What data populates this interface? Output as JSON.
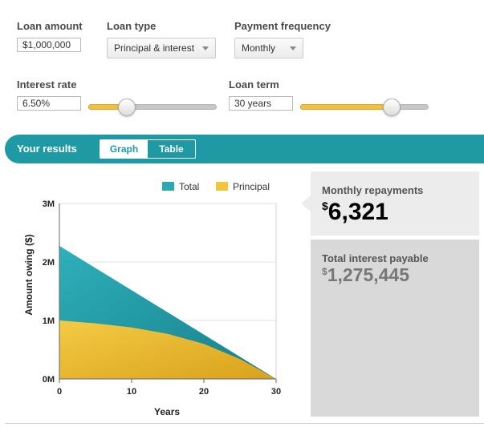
{
  "form": {
    "loan_amount_label": "Loan amount",
    "loan_amount_value": "$1,000,000",
    "loan_type_label": "Loan type",
    "loan_type_value": "Principal & interest",
    "frequency_label": "Payment frequency",
    "frequency_value": "Monthly",
    "interest_rate_label": "Interest rate",
    "interest_rate_value": "6.50%",
    "interest_slider_fraction": 0.3,
    "loan_term_label": "Loan term",
    "loan_term_value": "30 years",
    "term_slider_fraction": 0.71
  },
  "results": {
    "title": "Your results",
    "tabs": [
      "Graph",
      "Table"
    ],
    "active_tab": 0
  },
  "summary": {
    "monthly_label": "Monthly repayments",
    "monthly_currency": "$",
    "monthly_value": "6,321",
    "interest_label": "Total interest payable",
    "interest_currency": "$",
    "interest_value": "1,275,445"
  },
  "chart_data": {
    "type": "area",
    "xlabel": "Years",
    "ylabel": "Amount owing ($)",
    "xlim": [
      0,
      30
    ],
    "ylim": [
      0,
      3000000
    ],
    "x_ticks": [
      0,
      10,
      20,
      30
    ],
    "x_tick_labels": [
      "0",
      "10",
      "20",
      "30"
    ],
    "y_ticks": [
      0,
      1000000,
      2000000,
      3000000
    ],
    "y_tick_labels": [
      "0M",
      "1M",
      "2M",
      "3M"
    ],
    "grid": true,
    "legend_position": "top-right",
    "x": [
      0,
      5,
      10,
      15,
      20,
      25,
      30
    ],
    "series": [
      {
        "name": "Total",
        "color": "#2aa8b4",
        "values": [
          2275445,
          1896000,
          1517000,
          1138000,
          758000,
          379000,
          0
        ]
      },
      {
        "name": "Principal",
        "color": "#f3c63a",
        "values": [
          1000000,
          950000,
          880000,
          770000,
          600000,
          340000,
          0
        ]
      }
    ]
  }
}
